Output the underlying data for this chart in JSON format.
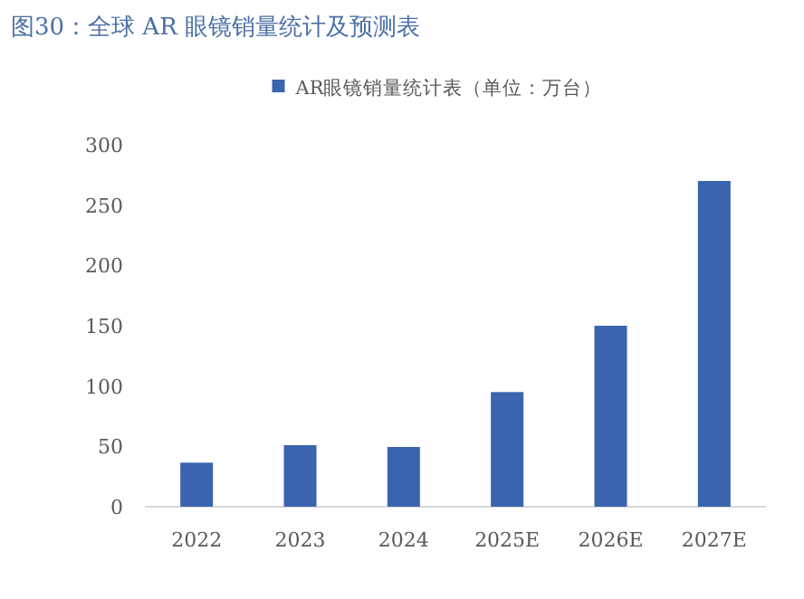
{
  "chart_data": {
    "type": "bar",
    "title": "图30：全球 AR 眼镜销量统计及预测表",
    "categories": [
      "2022",
      "2023",
      "2024",
      "2025E",
      "2026E",
      "2027E"
    ],
    "series": [
      {
        "name": "AR眼镜销量统计表（单位：万台）",
        "color": "#3a64ad",
        "values": [
          36.5,
          51,
          49.5,
          95,
          150,
          270
        ]
      }
    ],
    "ylim": [
      0,
      300
    ],
    "yticks": [
      0,
      50,
      100,
      150,
      200,
      250,
      300
    ],
    "legend": "top"
  }
}
